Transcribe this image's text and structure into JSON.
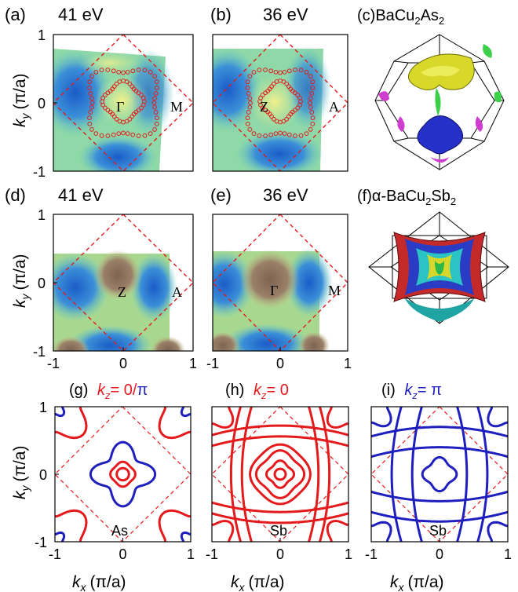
{
  "figure": {
    "panels": [
      {
        "id": "a",
        "tag": "(a)",
        "title": "41 eV",
        "point_center": "Γ",
        "point_edge": "M"
      },
      {
        "id": "b",
        "tag": "(b)",
        "title": "36 eV",
        "point_center": "Z",
        "point_edge": "A"
      },
      {
        "id": "c",
        "tag": "(c)",
        "title_main": "BaCu",
        "title_sub1": "2",
        "title_mid": "As",
        "title_sub2": "2"
      },
      {
        "id": "d",
        "tag": "(d)",
        "title": "41 eV",
        "point_center": "Z",
        "point_edge": "A"
      },
      {
        "id": "e",
        "tag": "(e)",
        "title": "36 eV",
        "point_center": "Γ",
        "point_edge": "M"
      },
      {
        "id": "f",
        "tag": "(f)",
        "title_main": "α-BaCu",
        "title_sub1": "2",
        "title_mid": "Sb",
        "title_sub2": "2"
      },
      {
        "id": "g",
        "tag": "(g)",
        "kz_red": "k",
        "kz_red_sub": "z",
        "kz_eq": "= 0/",
        "kz_blue": "π",
        "material": "As"
      },
      {
        "id": "h",
        "tag": "(h)",
        "kz_red": "k",
        "kz_red_sub": "z",
        "kz_eq": "= 0",
        "material": "Sb"
      },
      {
        "id": "i",
        "tag": "(i)",
        "kz_blue": "k",
        "kz_blue_sub": "z",
        "kz_eq": "= π",
        "material": "Sb"
      }
    ],
    "ylabel_k": "k",
    "ylabel_sub": "y",
    "ylabel_unit": "(π/a)",
    "xlabel_k": "k",
    "xlabel_sub": "x",
    "xlabel_unit": "(π/a)",
    "colors": {
      "red": "#e41a1c",
      "blue": "#1f1fbf",
      "frame": "#000000"
    }
  },
  "chart_data": [
    {
      "type": "heatmap",
      "panel": "a",
      "title": "41 eV",
      "xlim": [
        -1,
        1
      ],
      "ylim": [
        -1,
        1
      ],
      "yticks": [
        -1,
        0,
        1
      ],
      "ylabel": "k_y (π/a)",
      "annotations": [
        "Γ",
        "M"
      ]
    },
    {
      "type": "heatmap",
      "panel": "b",
      "title": "36 eV",
      "xlim": [
        -1,
        1
      ],
      "ylim": [
        -1,
        1
      ],
      "annotations": [
        "Z",
        "A"
      ]
    },
    {
      "type": "heatmap",
      "panel": "d",
      "title": "41 eV",
      "xlim": [
        -1,
        1
      ],
      "ylim": [
        -1,
        1
      ],
      "xticks": [
        -1,
        0,
        1
      ],
      "yticks": [
        -1,
        0,
        1
      ],
      "ylabel": "k_y (π/a)",
      "annotations": [
        "Z",
        "A"
      ]
    },
    {
      "type": "heatmap",
      "panel": "e",
      "title": "36 eV",
      "xlim": [
        -1,
        1
      ],
      "ylim": [
        -1,
        1
      ],
      "xticks": [
        -1,
        0,
        1
      ],
      "annotations": [
        "Γ",
        "M"
      ]
    },
    {
      "type": "line",
      "panel": "g",
      "title": "k_z= 0/π",
      "xlim": [
        -1,
        1
      ],
      "ylim": [
        -1,
        1
      ],
      "xticks": [
        -1,
        0,
        1
      ],
      "yticks": [
        -1,
        0,
        1
      ],
      "xlabel": "k_x (π/a)",
      "ylabel": "k_y (π/a)",
      "series": [
        {
          "name": "k_z= 0",
          "color": "#e41a1c"
        },
        {
          "name": "k_z= π",
          "color": "#1f1fbf"
        }
      ],
      "annotations": [
        "As"
      ]
    },
    {
      "type": "line",
      "panel": "h",
      "title": "k_z= 0",
      "xlim": [
        -1,
        1
      ],
      "ylim": [
        -1,
        1
      ],
      "xticks": [
        -1,
        0,
        1
      ],
      "xlabel": "k_x (π/a)",
      "series": [
        {
          "name": "k_z= 0",
          "color": "#e41a1c"
        }
      ],
      "annotations": [
        "Sb"
      ]
    },
    {
      "type": "line",
      "panel": "i",
      "title": "k_z= π",
      "xlim": [
        -1,
        1
      ],
      "ylim": [
        -1,
        1
      ],
      "xticks": [
        -1,
        0,
        1
      ],
      "xlabel": "k_x (π/a)",
      "series": [
        {
          "name": "k_z= π",
          "color": "#1f1fbf"
        }
      ],
      "annotations": [
        "Sb"
      ]
    }
  ]
}
